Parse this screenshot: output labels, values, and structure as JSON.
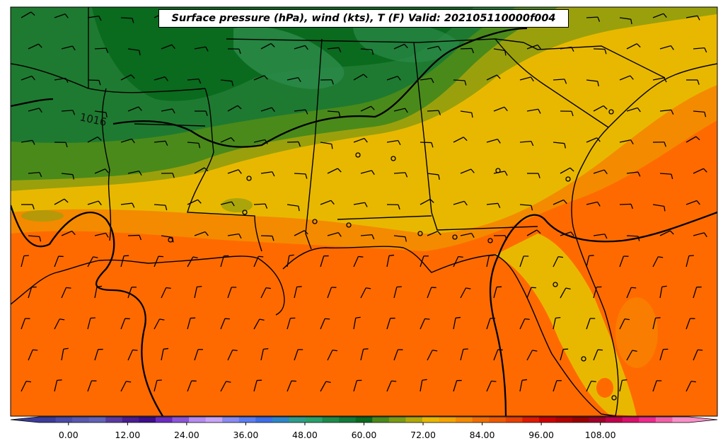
{
  "title": "Surface pressure (hPa), wind (kts), T (F) Valid: 202105110000f004",
  "isobar_label": "1016",
  "colorbar": {
    "min": -6,
    "max": 126,
    "ticks": [
      "0.00",
      "12.00",
      "24.00",
      "36.00",
      "48.00",
      "60.00",
      "72.00",
      "84.00",
      "96.00",
      "108.00"
    ],
    "tick_values": [
      0,
      12,
      24,
      36,
      48,
      60,
      72,
      84,
      96,
      108
    ],
    "colors": [
      "#3b3b99",
      "#4a4aa8",
      "#5858b0",
      "#6262b8",
      "#5a3aa0",
      "#4b1d8f",
      "#3d0d8a",
      "#6a2bbf",
      "#8c55d6",
      "#b58cf0",
      "#c9a5f7",
      "#8a8af2",
      "#5e7cf2",
      "#3d6ee8",
      "#2e86c8",
      "#2f9c8a",
      "#2aa06a",
      "#1e8a4a",
      "#137a3a",
      "#0a6a1e",
      "#4a8a1a",
      "#7a9a14",
      "#b0a808",
      "#e8b800",
      "#f5a300",
      "#f48a00",
      "#f06e00",
      "#ef5a00",
      "#e84000",
      "#de1a00",
      "#cc0000",
      "#b30000",
      "#9a0000",
      "#a0002a",
      "#c0004a",
      "#d8106a",
      "#ee2a8c",
      "#f360a8",
      "#f890c8"
    ]
  },
  "colors": {
    "land_cold": "#0a6a1e",
    "land_cool": "#2d8a3c",
    "warm_yellow": "#e8b800",
    "orange": "#f48a00",
    "deep_orange": "#ff6a00",
    "mid_green": "#4a8a1a",
    "olive": "#9aa00c"
  }
}
